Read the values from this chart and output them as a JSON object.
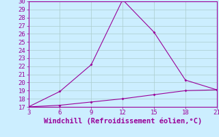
{
  "x": [
    3,
    6,
    9,
    12,
    15,
    18,
    21
  ],
  "y_upper": [
    17.0,
    18.9,
    22.2,
    30.2,
    26.2,
    20.3,
    19.1
  ],
  "y_lower": [
    17.0,
    17.2,
    17.6,
    18.0,
    18.5,
    19.0,
    19.1
  ],
  "line_color": "#990099",
  "bg_color": "#cceeff",
  "plot_bg_color": "#cceeff",
  "grid_color": "#aacccc",
  "xlabel": "Windchill (Refroidissement éolien,°C)",
  "xlim": [
    3,
    21
  ],
  "ylim": [
    17,
    30
  ],
  "xticks": [
    3,
    6,
    9,
    12,
    15,
    18,
    21
  ],
  "yticks": [
    17,
    18,
    19,
    20,
    21,
    22,
    23,
    24,
    25,
    26,
    27,
    28,
    29,
    30
  ],
  "tick_fontsize": 6.5,
  "xlabel_fontsize": 7.5
}
